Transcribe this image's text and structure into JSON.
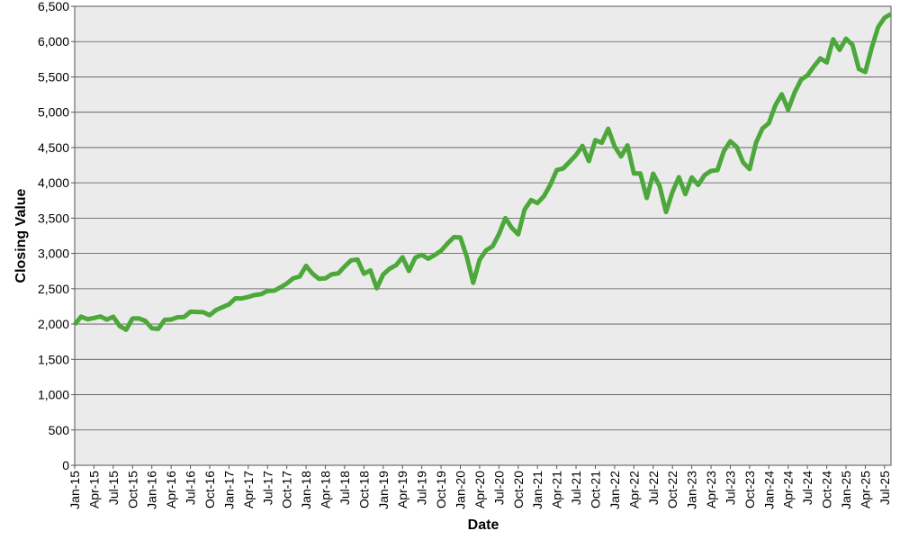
{
  "chart_data": {
    "type": "line",
    "x_label": "Date",
    "y_label": "Closing Value",
    "color": "#4ca83a",
    "grid": true,
    "ylim": [
      0,
      6500
    ],
    "yticks": [
      0,
      500,
      {
        "value": 1000,
        "label": "1,000"
      },
      {
        "value": 1500,
        "label": "1,500"
      },
      {
        "value": 2000,
        "label": "2,000"
      },
      {
        "value": 2500,
        "label": "2,500"
      },
      {
        "value": 3000,
        "label": "3,000"
      },
      {
        "value": 3500,
        "label": "3,500"
      },
      {
        "value": 4000,
        "label": "4,000"
      },
      {
        "value": 4500,
        "label": "4,500"
      },
      {
        "value": 5000,
        "label": "5,000"
      },
      {
        "value": 5500,
        "label": "5,500"
      },
      {
        "value": 6000,
        "label": "6,000"
      },
      {
        "value": 6500,
        "label": "6,500"
      }
    ],
    "categories": [
      "Jan-15",
      null,
      null,
      "Apr-15",
      null,
      null,
      "Jul-15",
      null,
      null,
      "Oct-15",
      null,
      null,
      "Jan-16",
      null,
      null,
      "Apr-16",
      null,
      null,
      "Jul-16",
      null,
      null,
      "Oct-16",
      null,
      null,
      "Jan-17",
      null,
      null,
      "Apr-17",
      null,
      null,
      "Jul-17",
      null,
      null,
      "Oct-17",
      null,
      null,
      "Jan-18",
      null,
      null,
      "Apr-18",
      null,
      null,
      "Jul-18",
      null,
      null,
      "Oct-18",
      null,
      null,
      "Jan-19",
      null,
      null,
      "Apr-19",
      null,
      null,
      "Jul-19",
      null,
      null,
      "Oct-19",
      null,
      null,
      "Jan-20",
      null,
      null,
      "Apr-20",
      null,
      null,
      "Jul-20",
      null,
      null,
      "Oct-20",
      null,
      null,
      "Jan-21",
      null,
      null,
      "Apr-21",
      null,
      null,
      "Jul-21",
      null,
      null,
      "Oct-21",
      null,
      null,
      "Jan-22",
      null,
      null,
      "Apr-22",
      null,
      null,
      "Jul-22",
      null,
      null,
      "Oct-22",
      null,
      null,
      "Jan-23",
      null,
      null,
      "Apr-23",
      null,
      null,
      "Jul-23",
      null,
      null,
      "Oct-23",
      null,
      null,
      "Jan-24",
      null,
      null,
      "Apr-24",
      null,
      null,
      "Jul-24",
      null,
      null,
      "Oct-24",
      null,
      null,
      "Jan-25",
      null,
      null,
      "Apr-25",
      null,
      null,
      "Jul-25",
      null
    ],
    "values": [
      1995,
      2105,
      2068,
      2086,
      2107,
      2063,
      2104,
      1972,
      1920,
      2079,
      2080,
      2044,
      1940,
      1932,
      2060,
      2065,
      2097,
      2099,
      2174,
      2171,
      2168,
      2126,
      2199,
      2239,
      2279,
      2364,
      2363,
      2384,
      2412,
      2423,
      2470,
      2472,
      2519,
      2575,
      2648,
      2674,
      2824,
      2714,
      2641,
      2648,
      2705,
      2718,
      2816,
      2902,
      2914,
      2712,
      2760,
      2507,
      2704,
      2784,
      2834,
      2946,
      2752,
      2942,
      2980,
      2926,
      2977,
      3038,
      3141,
      3231,
      3226,
      2954,
      2585,
      2912,
      3044,
      3100,
      3271,
      3500,
      3363,
      3270,
      3622,
      3756,
      3714,
      3811,
      3973,
      4181,
      4204,
      4298,
      4395,
      4523,
      4308,
      4605,
      4567,
      4766,
      4516,
      4374,
      4530,
      4132,
      4132,
      3785,
      4130,
      3955,
      3586,
      3872,
      4080,
      3840,
      4077,
      3970,
      4109,
      4169,
      4180,
      4450,
      4589,
      4508,
      4288,
      4194,
      4568,
      4770,
      4846,
      5096,
      5254,
      5036,
      5278,
      5460,
      5522,
      5648,
      5762,
      5705,
      6032,
      5882,
      6041,
      5955,
      5612,
      5569,
      5912,
      6205,
      6339,
      6390
    ]
  }
}
